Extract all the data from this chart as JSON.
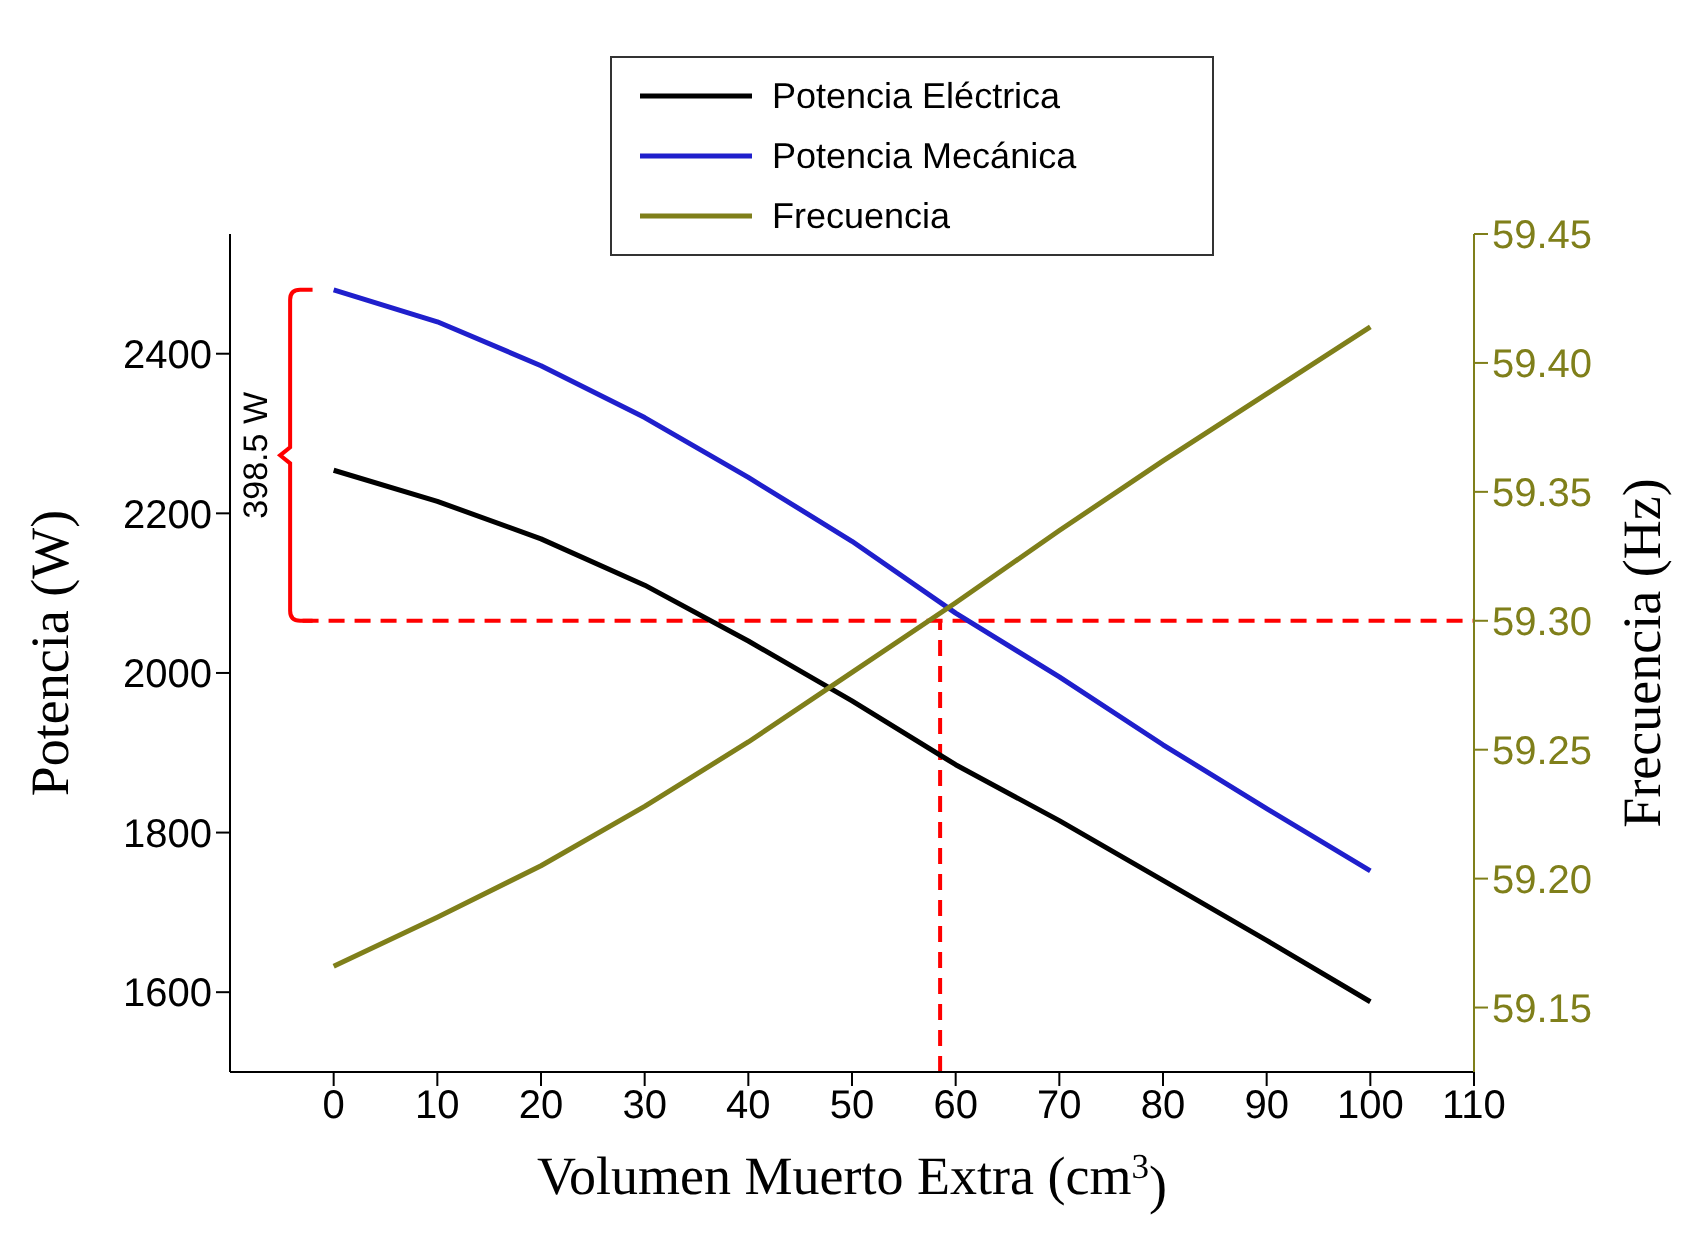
{
  "chart_data": {
    "type": "line",
    "xlabel": "Volumen Muerto Extra (cm$^{3}$)",
    "ylabel": "Potencia (W)",
    "y2label": "Frecuencia (Hz)",
    "x": [
      0,
      10,
      20,
      30,
      40,
      50,
      60,
      70,
      80,
      90,
      100
    ],
    "series": [
      {
        "name": "Potencia Eléctrica",
        "color": "#000000",
        "values": [
          2254,
          2215,
          2168,
          2110,
          2040,
          1965,
          1885,
          1815,
          1740,
          1665,
          1588
        ]
      },
      {
        "name": "Potencia Mecánica",
        "color": "#1f1fcc",
        "values": [
          2480,
          2440,
          2385,
          2320,
          2245,
          2165,
          2075,
          1995,
          1910,
          1830,
          1752
        ]
      },
      {
        "name": "Frecuencia",
        "color": "#7f7f1a",
        "axis": "y2",
        "values": [
          59.166,
          59.185,
          59.205,
          59.228,
          59.253,
          59.28,
          59.307,
          59.335,
          59.362,
          59.388,
          59.414
        ]
      }
    ],
    "xlim": [
      -10,
      110
    ],
    "xticks": [
      0,
      10,
      20,
      30,
      40,
      50,
      60,
      70,
      80,
      90,
      100,
      110
    ],
    "ylim": [
      1500,
      2550
    ],
    "yticks": [
      1600,
      1800,
      2000,
      2200,
      2400
    ],
    "y2lim": [
      59.125,
      59.45
    ],
    "y2ticks": [
      {
        "value": 59.15,
        "label": "59.15"
      },
      {
        "value": 59.2,
        "label": "59.20"
      },
      {
        "value": 59.25,
        "label": "59.25"
      },
      {
        "value": 59.3,
        "label": "59.30"
      },
      {
        "value": 59.35,
        "label": "59.35"
      },
      {
        "value": 59.4,
        "label": "59.40"
      },
      {
        "value": 59.45,
        "label": "59.45"
      }
    ],
    "ref_lines": [
      {
        "axis": "y2",
        "value": 59.3,
        "color": "#ff0000",
        "line_style": "dashed"
      },
      {
        "axis": "x",
        "value": 58.5,
        "color": "#ff0000",
        "line_style": "dashed"
      }
    ],
    "annotations": [
      "398.5 W"
    ],
    "legend": "top",
    "marker": "none",
    "line_style": "solid"
  }
}
